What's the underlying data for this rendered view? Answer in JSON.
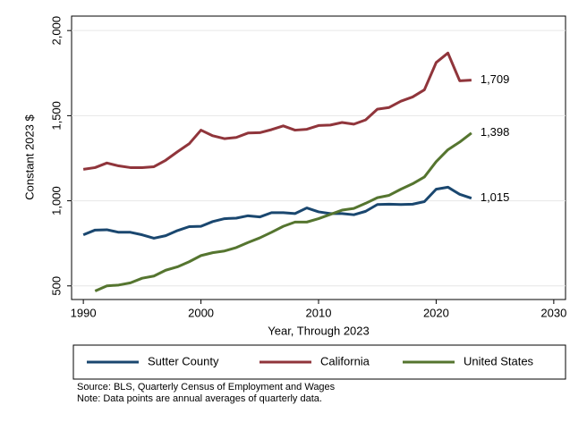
{
  "chart_data": {
    "type": "line",
    "x_label": "Year, Through 2023",
    "y_label": "Constant 2023 $",
    "x": [
      1990,
      1991,
      1992,
      1993,
      1994,
      1995,
      1996,
      1997,
      1998,
      1999,
      2000,
      2001,
      2002,
      2003,
      2004,
      2005,
      2006,
      2007,
      2008,
      2009,
      2010,
      2011,
      2012,
      2013,
      2014,
      2015,
      2016,
      2017,
      2018,
      2019,
      2020,
      2021,
      2022,
      2023
    ],
    "series": [
      {
        "name": "Sutter County",
        "color": "#1a476f",
        "values": [
          800,
          828,
          830,
          815,
          815,
          800,
          780,
          795,
          825,
          848,
          850,
          878,
          895,
          898,
          912,
          905,
          930,
          930,
          925,
          958,
          935,
          925,
          925,
          918,
          938,
          978,
          980,
          978,
          980,
          995,
          1068,
          1080,
          1038,
          1015
        ],
        "value_labels": [
          null,
          null,
          null,
          null,
          null,
          null,
          null,
          null,
          null,
          null,
          null,
          null,
          null,
          null,
          null,
          null,
          null,
          null,
          null,
          null,
          null,
          null,
          null,
          null,
          null,
          null,
          null,
          null,
          null,
          null,
          null,
          null,
          null,
          "1,015"
        ]
      },
      {
        "name": "California",
        "color": "#90353b",
        "values": [
          1185,
          1195,
          1222,
          1205,
          1195,
          1195,
          1200,
          1238,
          1288,
          1335,
          1415,
          1382,
          1365,
          1372,
          1398,
          1400,
          1418,
          1440,
          1415,
          1420,
          1442,
          1445,
          1460,
          1450,
          1475,
          1538,
          1548,
          1585,
          1610,
          1652,
          1812,
          1868,
          1705,
          1709
        ],
        "value_labels": [
          null,
          null,
          null,
          null,
          null,
          null,
          null,
          null,
          null,
          null,
          null,
          null,
          null,
          null,
          null,
          null,
          null,
          null,
          null,
          null,
          null,
          null,
          null,
          null,
          null,
          null,
          null,
          null,
          null,
          null,
          null,
          null,
          null,
          "1,709"
        ]
      },
      {
        "name": "United States",
        "color": "#55752f",
        "values": [
          null,
          470,
          500,
          505,
          518,
          545,
          558,
          592,
          612,
          642,
          678,
          695,
          705,
          725,
          755,
          782,
          815,
          850,
          875,
          875,
          895,
          920,
          945,
          955,
          985,
          1018,
          1032,
          1068,
          1100,
          1140,
          1230,
          1300,
          1345,
          1398
        ],
        "value_labels": [
          null,
          null,
          null,
          null,
          null,
          null,
          null,
          null,
          null,
          null,
          null,
          null,
          null,
          null,
          null,
          null,
          null,
          null,
          null,
          null,
          null,
          null,
          null,
          null,
          null,
          null,
          null,
          null,
          null,
          null,
          null,
          null,
          null,
          "1,398"
        ]
      }
    ],
    "xlim": [
      1989,
      2031
    ],
    "xticks": [
      1990,
      2000,
      2010,
      2020,
      2030
    ],
    "ylim": [
      420,
      2085
    ],
    "yticks": [
      500,
      {
        "value": 1000,
        "label": "1,000"
      },
      {
        "value": 1500,
        "label": "1,500"
      },
      {
        "value": 2000,
        "label": "2,000"
      }
    ],
    "grid": true,
    "legend": "bottom",
    "notes": [
      "Source: BLS, Quarterly Census of Employment and Wages",
      "Note: Data points are annual averages of quarterly data."
    ]
  }
}
